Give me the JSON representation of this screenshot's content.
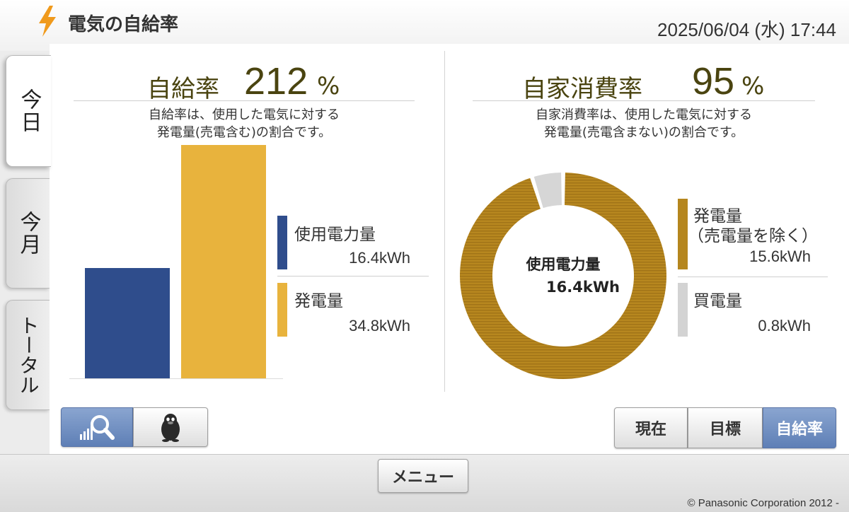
{
  "header": {
    "title": "電気の自給率",
    "datetime": "2025/06/04 (水) 17:44"
  },
  "tabs": [
    {
      "label": "今日",
      "active": true
    },
    {
      "label": "今月",
      "active": false
    },
    {
      "label": "トータル",
      "active": false
    }
  ],
  "self_sufficiency": {
    "label": "自給率",
    "value": "212",
    "unit": "%",
    "desc_line1": "自給率は、使用した電気に対する",
    "desc_line2": "発電量(売電含む)の割合です。",
    "legend": [
      {
        "label": "使用電力量",
        "value": "16.4kWh",
        "color": "#2f4d8c"
      },
      {
        "label": "発電量",
        "value": "34.8kWh",
        "color": "#e8b33d"
      }
    ]
  },
  "self_consumption": {
    "label": "自家消費率",
    "value": "95",
    "unit": "%",
    "desc_line1": "自家消費率は、使用した電気に対する",
    "desc_line2": "発電量(売電含まない)の割合です。",
    "center_label": "使用電力量",
    "center_value": "16.4kWh",
    "legend": [
      {
        "label_line1": "発電量",
        "label_line2": "（売電量を除く）",
        "value": "15.6kWh",
        "color": "#b5861e"
      },
      {
        "label": "買電量",
        "value": "0.8kWh",
        "color": "#d3d3d3"
      }
    ]
  },
  "chart_data": [
    {
      "type": "bar",
      "categories": [
        "使用電力量",
        "発電量"
      ],
      "values": [
        16.4,
        34.8
      ],
      "unit": "kWh"
    },
    {
      "type": "pie",
      "categories": [
        "発電量（売電量を除く）",
        "買電量"
      ],
      "values": [
        15.6,
        0.8
      ],
      "unit": "kWh"
    }
  ],
  "bottom_left_buttons": [
    {
      "icon": "zoom-graph-icon",
      "active": true
    },
    {
      "icon": "penguin-icon",
      "active": false
    }
  ],
  "view_buttons": [
    {
      "label": "現在",
      "active": false
    },
    {
      "label": "目標",
      "active": false
    },
    {
      "label": "自給率",
      "active": true
    }
  ],
  "menu_label": "メニュー",
  "copyright": "© Panasonic Corporation 2012 -"
}
